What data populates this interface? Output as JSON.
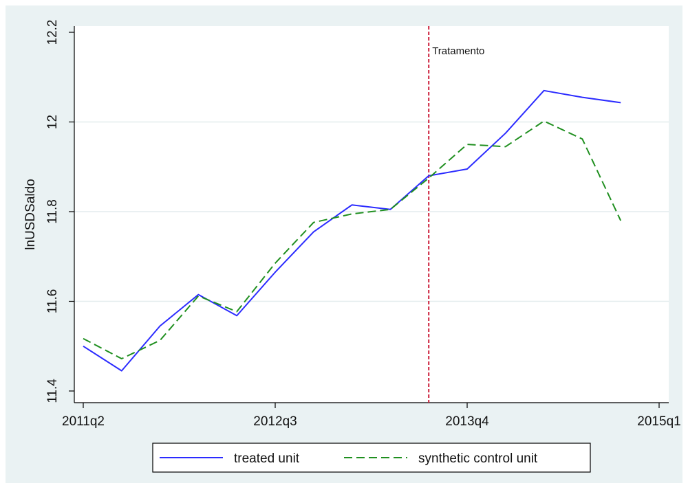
{
  "chart_data": {
    "type": "line",
    "title": "",
    "xlabel": "",
    "ylabel": "lnUSDSaldo",
    "x": [
      "2011q2",
      "2011q3",
      "2011q4",
      "2012q1",
      "2012q2",
      "2012q3",
      "2012q4",
      "2013q1",
      "2013q2",
      "2013q3",
      "2013q4",
      "2014q1",
      "2014q2",
      "2014q3",
      "2014q4"
    ],
    "x_ticks": [
      "2011q2",
      "2012q3",
      "2013q4",
      "2015q1"
    ],
    "y_ticks": [
      "11.4",
      "11.6",
      "11.8",
      "12",
      "12.2"
    ],
    "ylim": [
      11.4,
      12.2
    ],
    "grid": true,
    "legend_position": "bottom",
    "series": [
      {
        "name": "treated unit",
        "color": "#2b2bff",
        "style": "solid",
        "values": [
          11.5,
          11.445,
          11.545,
          11.615,
          11.568,
          11.665,
          11.755,
          11.815,
          11.805,
          11.88,
          11.895,
          11.975,
          12.07,
          12.055,
          12.043
        ]
      },
      {
        "name": "synthetic control unit",
        "color": "#1f8f1f",
        "style": "dashed",
        "values": [
          11.517,
          11.472,
          11.513,
          11.612,
          11.577,
          11.685,
          11.776,
          11.795,
          11.805,
          11.875,
          11.95,
          11.945,
          12.002,
          11.962,
          11.78
        ]
      }
    ],
    "annotations": [
      {
        "text": "Tratamento",
        "x": "2013q3",
        "type": "vline",
        "color": "#cc1f3a"
      }
    ]
  }
}
